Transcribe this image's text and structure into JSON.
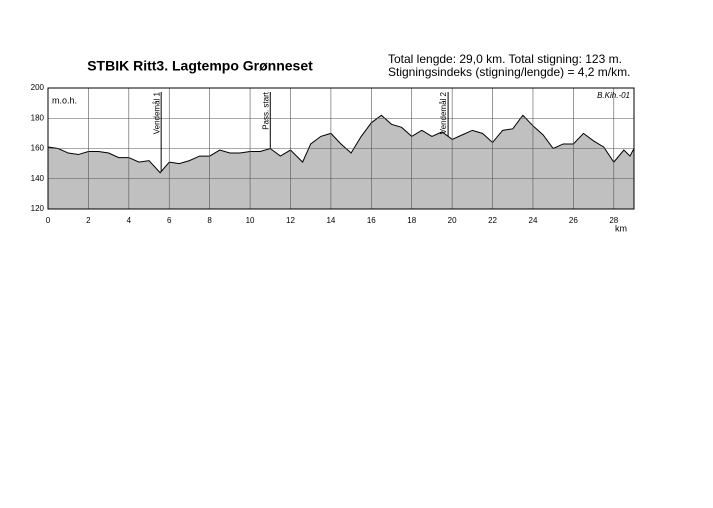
{
  "chart_data": {
    "type": "area",
    "title": "STBIK Ritt3. Lagtempo Grønneset",
    "info": [
      "Total lengde: 29,0 km.  Total stigning: 123 m.",
      "Stigningsindeks (stigning/lengde) = 4,2 m/km."
    ],
    "signature": "B.Kih.-01",
    "y_label": "m.o.h.",
    "x_label": "km",
    "x": [
      0,
      0.5,
      1,
      1.5,
      2,
      2.5,
      3,
      3.5,
      4,
      4.5,
      5,
      5.55,
      6,
      6.5,
      7,
      7.5,
      8,
      8.5,
      9,
      9.5,
      10,
      10.5,
      11,
      11.5,
      12,
      12.6,
      13,
      13.5,
      14,
      14.5,
      15,
      15.5,
      16,
      16.5,
      17,
      17.5,
      18,
      18.5,
      19,
      19.5,
      20,
      20.5,
      21,
      21.5,
      22,
      22.5,
      23,
      23.5,
      24,
      24.5,
      25,
      25.5,
      26,
      26.5,
      27,
      27.5,
      28,
      28.5,
      28.8,
      29
    ],
    "values": [
      161,
      160,
      157,
      156,
      158,
      158,
      157,
      154,
      154,
      151,
      152,
      144,
      151,
      150,
      152,
      155,
      155,
      159,
      157,
      157,
      158,
      158,
      160,
      155,
      159,
      151,
      163,
      168,
      170,
      163,
      157,
      168,
      177,
      182,
      176,
      174,
      168,
      172,
      168,
      171,
      166,
      169,
      172,
      170,
      164,
      172,
      173,
      182,
      175,
      169,
      160,
      163,
      163,
      170,
      165,
      161,
      151,
      159,
      155,
      160
    ],
    "color": "#c0c0c0",
    "annotations": [
      {
        "text": "Vendemål 1",
        "x": 5.6
      },
      {
        "text": "Pass. start",
        "x": 11
      },
      {
        "text": "Vendemål 2",
        "x": 19.8
      }
    ],
    "xlim": [
      0,
      29
    ],
    "xticks": [
      0,
      2,
      4,
      6,
      8,
      10,
      12,
      14,
      16,
      18,
      20,
      22,
      24,
      26,
      28
    ],
    "ylim": [
      120,
      200
    ],
    "yticks": [
      120,
      140,
      160,
      180,
      200
    ],
    "grid": true
  }
}
